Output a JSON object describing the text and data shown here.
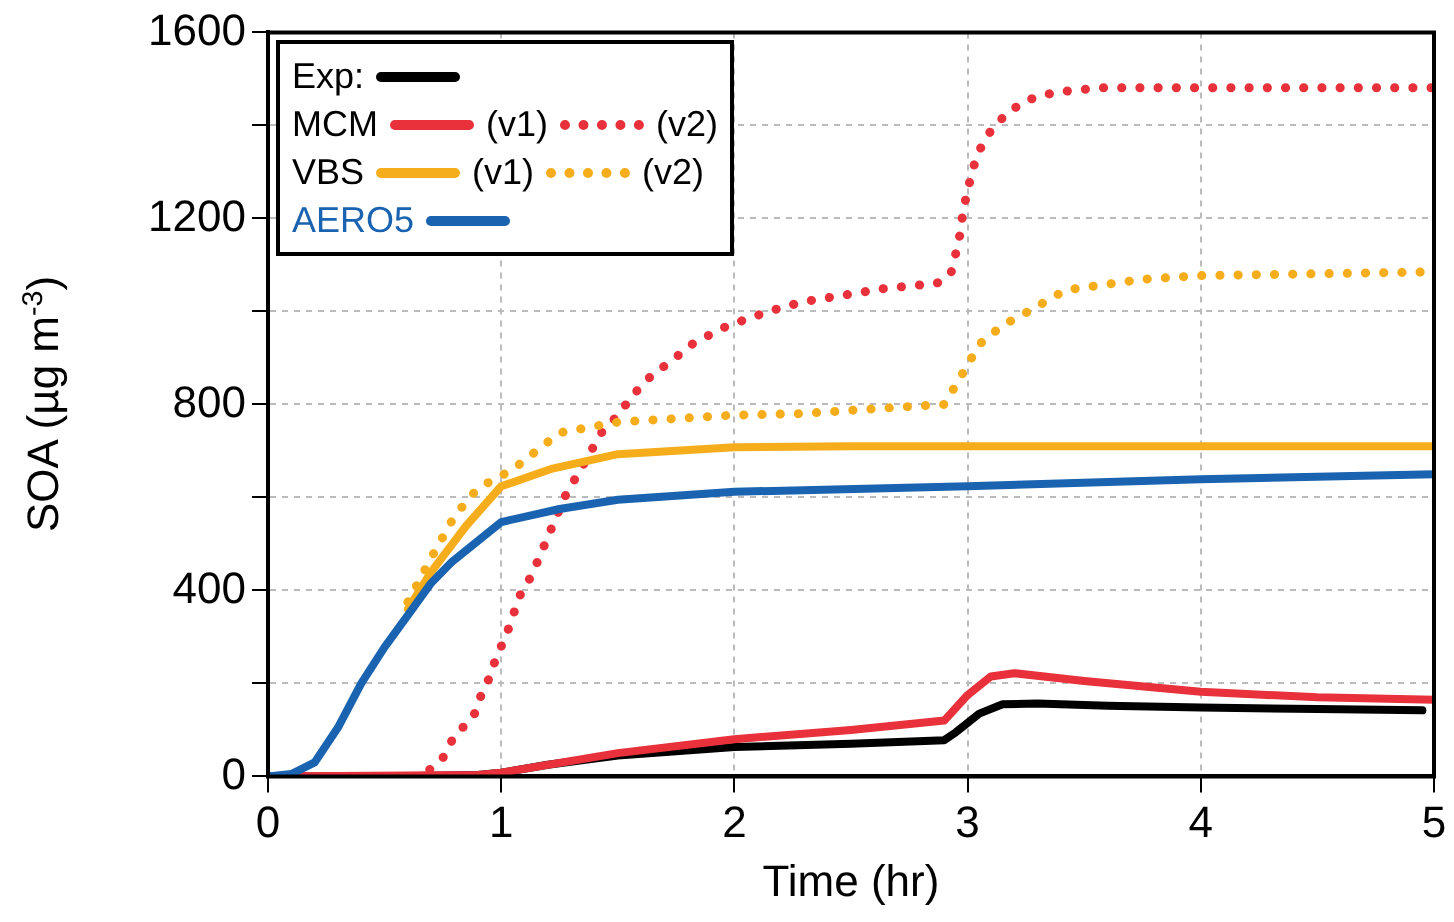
{
  "chart_data": {
    "type": "line",
    "xlabel": "Time (hr)",
    "ylabel": "SOA (µg m$^{-3}$)",
    "xlim": [
      0,
      5
    ],
    "xticks": [
      0,
      1,
      2,
      3,
      4,
      5
    ],
    "ylim": [
      0,
      1600
    ],
    "yticks": [
      0,
      {
        "value": 200,
        "label": null
      },
      400,
      {
        "value": 600,
        "label": null
      },
      800,
      {
        "value": 1000,
        "label": null
      },
      1200,
      {
        "value": 1400,
        "label": null
      },
      1600
    ],
    "grid": true,
    "legend": "top left",
    "marker": "none",
    "series": [
      {
        "name": "Exp:",
        "color": "#000000",
        "line_style": "solid",
        "x": [
          0,
          0.5,
          0.9,
          1.0,
          1.2,
          1.5,
          2,
          2.5,
          2.9,
          2.95,
          3.05,
          3.15,
          3.3,
          3.6,
          4,
          4.5,
          4.95
        ],
        "values": [
          0,
          0,
          3,
          8,
          25,
          45,
          63,
          70,
          78,
          95,
          135,
          155,
          157,
          152,
          148,
          145,
          142
        ]
      },
      {
        "name": "MCM (v1)",
        "color": "#e8313a",
        "line_style": "solid",
        "x": [
          0,
          0.9,
          1,
          1.5,
          2,
          2.5,
          2.9,
          3.0,
          3.1,
          3.2,
          3.5,
          4,
          4.5,
          5
        ],
        "values": [
          0,
          3,
          8,
          50,
          80,
          100,
          120,
          175,
          215,
          222,
          205,
          182,
          170,
          165
        ]
      },
      {
        "name": "(v2)",
        "color": "#e8313a",
        "line_style": "dotted",
        "x": [
          0,
          0.65,
          0.7,
          0.75,
          0.8,
          0.88,
          0.91,
          0.95,
          0.98,
          1.02,
          1.08,
          1.13,
          1.17,
          1.24,
          1.28,
          1.33,
          1.43,
          1.5,
          1.57,
          1.65,
          1.73,
          1.81,
          1.88,
          1.97,
          2.13,
          2.22,
          2.31,
          2.47,
          2.64,
          2.8,
          2.88,
          2.93,
          2.95,
          2.97,
          2.98,
          3.0,
          3.02,
          3.05,
          3.1,
          3.17,
          3.25,
          3.33,
          3.41,
          3.57,
          4,
          4.5,
          5
        ],
        "values": [
          0,
          0,
          17,
          40,
          88,
          127,
          170,
          213,
          258,
          301,
          389,
          432,
          479,
          563,
          609,
          651,
          739,
          777,
          823,
          865,
          893,
          927,
          946,
          969,
          997,
          1011,
          1022,
          1035,
          1049,
          1057,
          1062,
          1085,
          1126,
          1172,
          1215,
          1259,
          1303,
          1346,
          1389,
          1427,
          1453,
          1466,
          1473,
          1481,
          1481,
          1481,
          1481
        ]
      },
      {
        "name": "VBS (v1)",
        "color": "#f6ad1b",
        "line_style": "solid",
        "x": [
          0.6,
          0.7,
          0.85,
          1.0,
          1.22,
          1.5,
          2,
          2.5,
          3,
          4,
          5
        ],
        "values": [
          360,
          440,
          539,
          624,
          662,
          693,
          708,
          710,
          710,
          710,
          710
        ]
      },
      {
        "name": "(v2)",
        "color": "#f6ad1b",
        "line_style": "dotted",
        "x": [
          0.6,
          0.7,
          0.8,
          0.9,
          1.05,
          1.25,
          1.5,
          2,
          2.28,
          2.8,
          2.9,
          2.95,
          3.0,
          3.05,
          3.15,
          3.25,
          3.42,
          3.75,
          4.0,
          4.5,
          5
        ],
        "values": [
          375,
          470,
          560,
          620,
          660,
          739,
          762,
          777,
          780,
          797,
          800,
          842,
          885,
          929,
          970,
          997,
          1046,
          1069,
          1077,
          1081,
          1085
        ]
      },
      {
        "name": "AERO5",
        "color": "#1a63b0",
        "line_style": "solid",
        "x": [
          0,
          0.1,
          0.2,
          0.3,
          0.4,
          0.5,
          0.6,
          0.7,
          0.79,
          1.0,
          1.25,
          1.5,
          2,
          3,
          4,
          5
        ],
        "values": [
          0,
          5,
          30,
          105,
          200,
          278,
          347,
          416,
          462,
          547,
          575,
          595,
          612,
          624,
          639,
          650
        ]
      }
    ]
  }
}
